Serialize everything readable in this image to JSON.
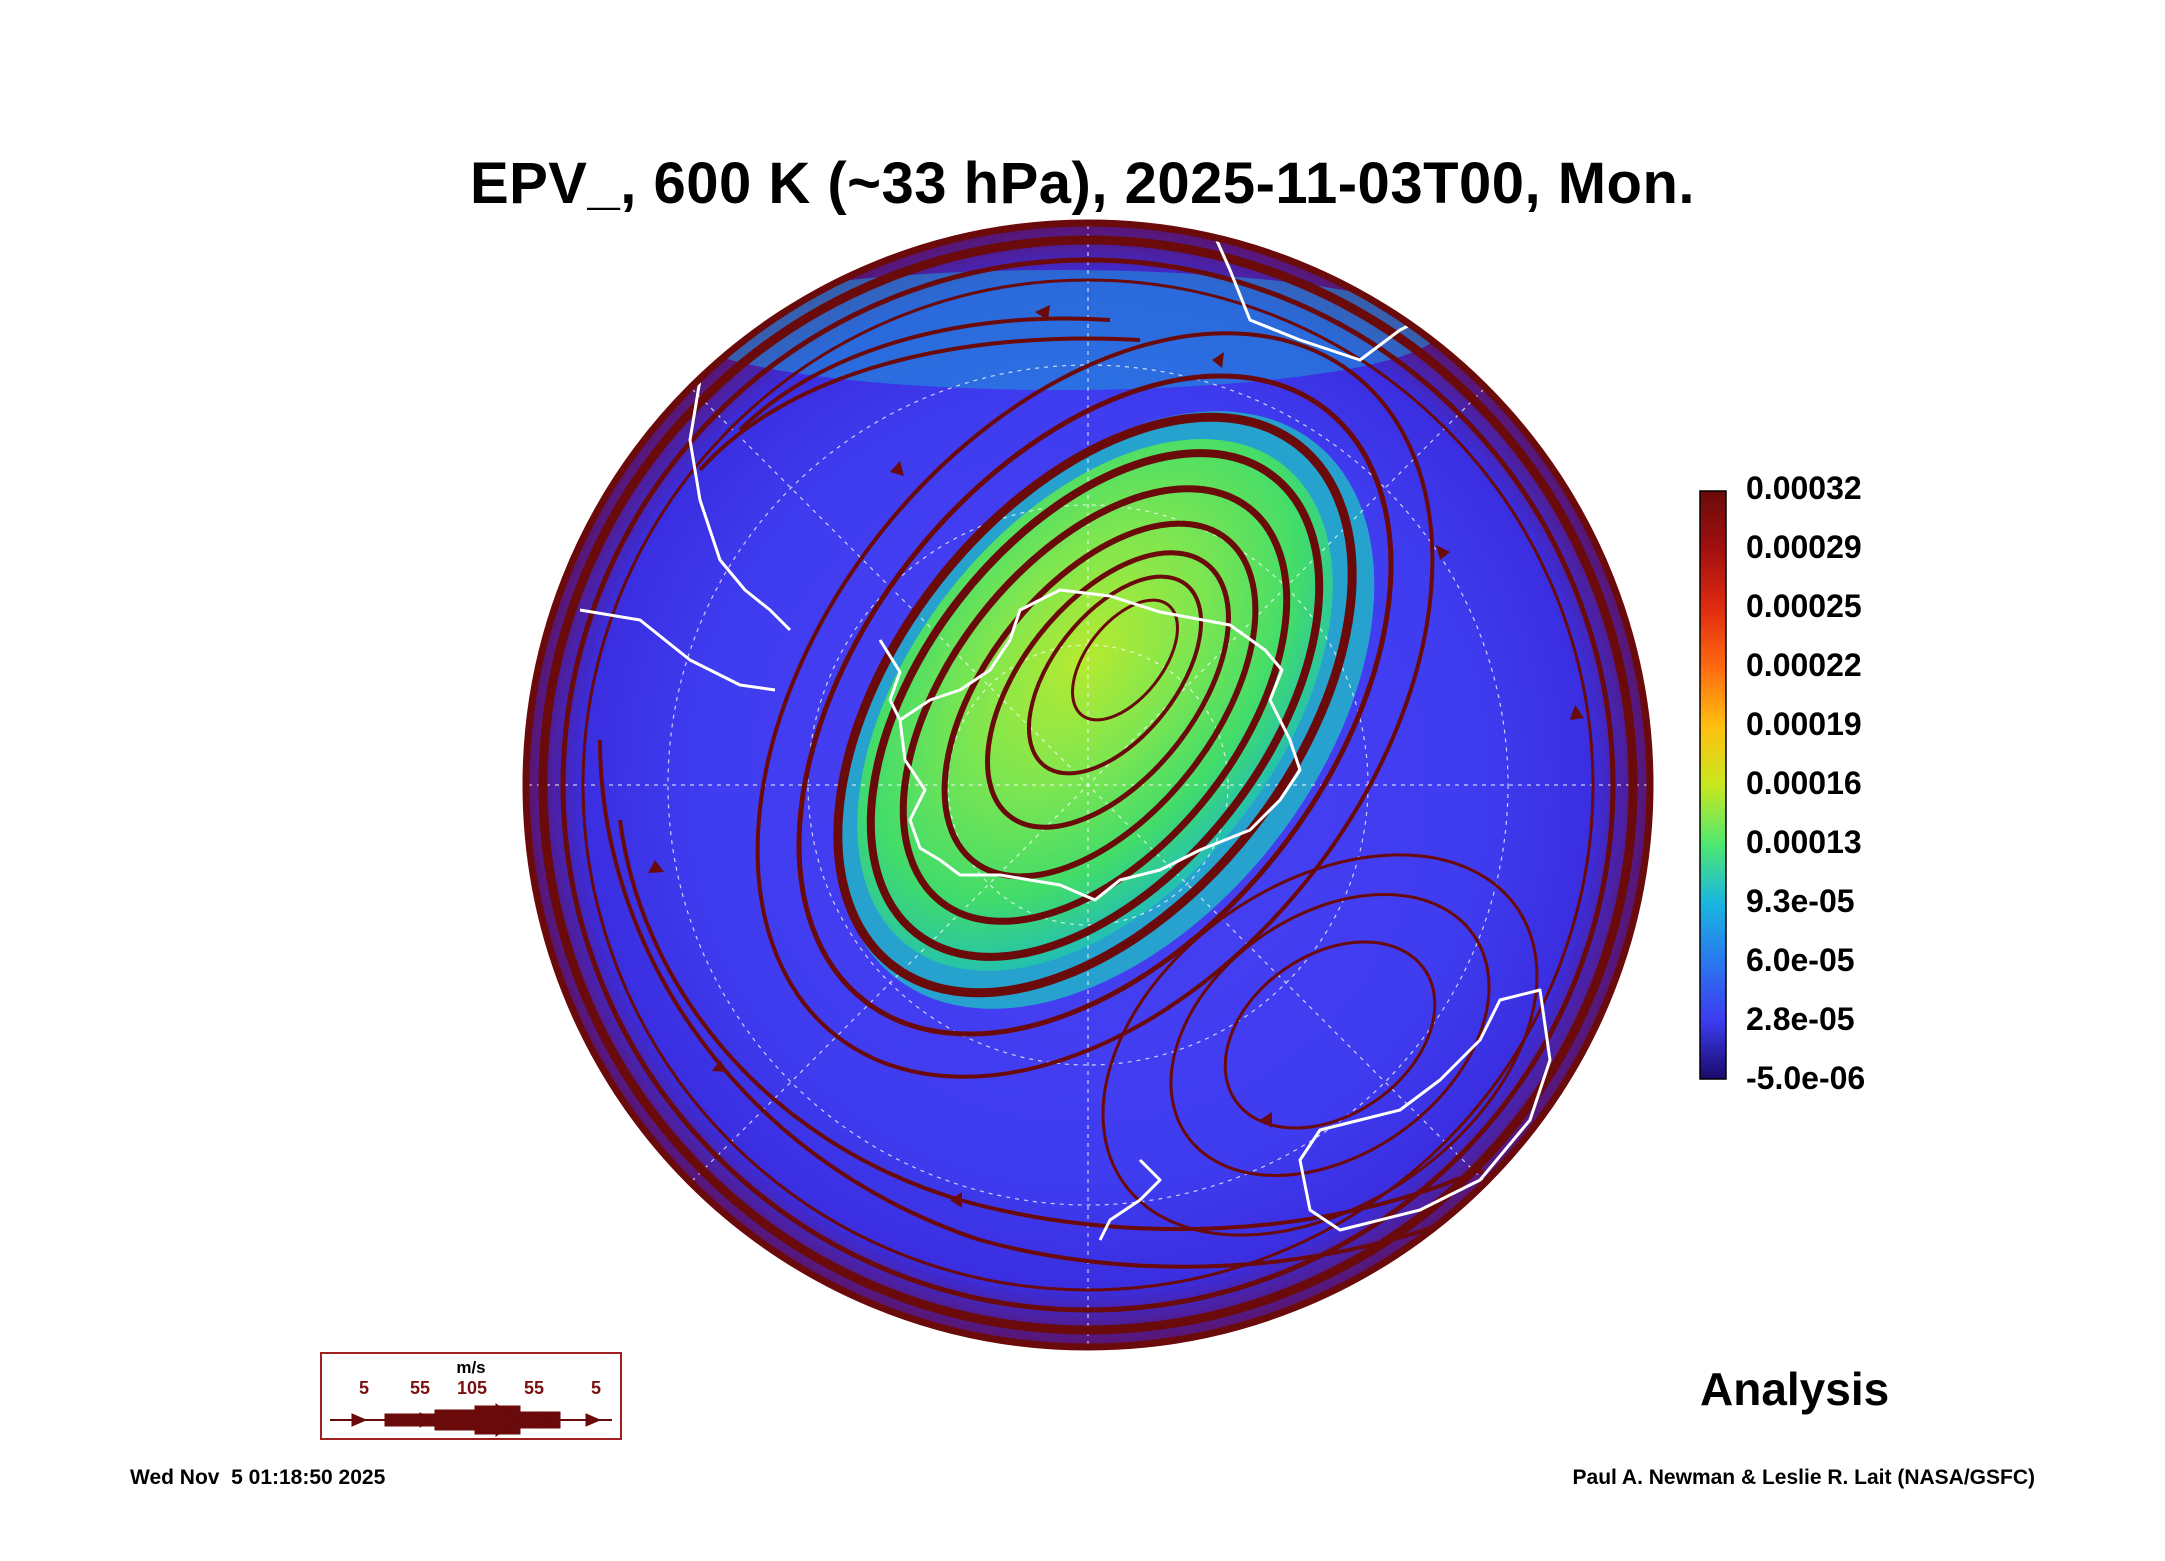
{
  "title": "EPV_, 600 K (~33 hPa), 2025-11-03T00, Mon.",
  "colorbar": {
    "labels": [
      "0.00032",
      "0.00029",
      "0.00025",
      "0.00022",
      "0.00019",
      "0.00016",
      "0.00013",
      "9.3e-05",
      "6.0e-05",
      "2.8e-05",
      "-5.0e-06"
    ],
    "colors": [
      "#6a0a0a",
      "#a31010",
      "#e02b10",
      "#ff6a10",
      "#ffbf10",
      "#c8e81e",
      "#4fe870",
      "#19b6e0",
      "#2a78ee",
      "#3c3cf0",
      "#1a0a6a"
    ]
  },
  "legend": {
    "unit": "m/s",
    "speeds": [
      "5",
      "55",
      "105",
      "55",
      "5"
    ]
  },
  "label": "Analysis",
  "timestamp": "Wed Nov  5 01:18:50 2025",
  "credit": "Paul A. Newman & Leslie R. Lait (NASA/GSFC)",
  "colors": {
    "background_field": "#3f3ff0",
    "vortex_field": "#58e060",
    "vortex_core": "#b6ea30",
    "streamline": "#6a0a0a",
    "coastline": "#ffffff",
    "rim": "#6a0a0a"
  }
}
